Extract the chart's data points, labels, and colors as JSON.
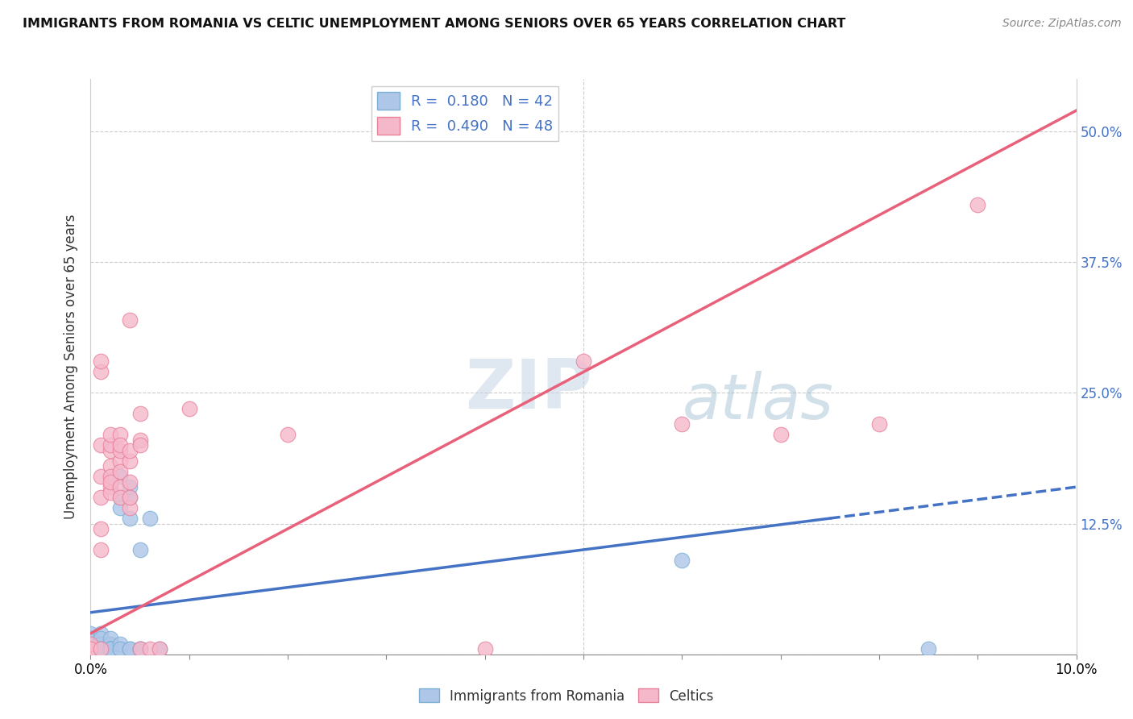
{
  "title": "IMMIGRANTS FROM ROMANIA VS CELTIC UNEMPLOYMENT AMONG SENIORS OVER 65 YEARS CORRELATION CHART",
  "source": "Source: ZipAtlas.com",
  "ylabel": "Unemployment Among Seniors over 65 years",
  "xlim": [
    0.0,
    0.1
  ],
  "ylim": [
    0.0,
    0.55
  ],
  "x_ticks": [
    0.0,
    0.01,
    0.02,
    0.03,
    0.04,
    0.05,
    0.06,
    0.07,
    0.08,
    0.09,
    0.1
  ],
  "x_tick_labels": [
    "0.0%",
    "",
    "",
    "",
    "",
    "",
    "",
    "",
    "",
    "",
    "10.0%"
  ],
  "y_ticks_right": [
    0.0,
    0.125,
    0.25,
    0.375,
    0.5
  ],
  "y_tick_labels_right": [
    "",
    "12.5%",
    "25.0%",
    "37.5%",
    "50.0%"
  ],
  "legend_R1": "0.180",
  "legend_N1": "42",
  "legend_R2": "0.490",
  "legend_N2": "48",
  "series1_color": "#aec6e8",
  "series1_edge": "#7bafd4",
  "series2_color": "#f5b8cb",
  "series2_edge": "#e8809a",
  "line1_color": "#4472c4",
  "line2_color": "#e8607a",
  "watermark_color": "#ccd9e8",
  "background_color": "#ffffff",
  "grid_color": "#cccccc",
  "romania_points": [
    [
      0.0,
      0.01
    ],
    [
      0.0,
      0.02
    ],
    [
      0.0,
      0.005
    ],
    [
      0.0,
      0.015
    ],
    [
      0.001,
      0.005
    ],
    [
      0.001,
      0.01
    ],
    [
      0.001,
      0.005
    ],
    [
      0.001,
      0.02
    ],
    [
      0.001,
      0.005
    ],
    [
      0.001,
      0.01
    ],
    [
      0.001,
      0.005
    ],
    [
      0.001,
      0.015
    ],
    [
      0.001,
      0.005
    ],
    [
      0.001,
      0.005
    ],
    [
      0.002,
      0.005
    ],
    [
      0.002,
      0.005
    ],
    [
      0.002,
      0.01
    ],
    [
      0.002,
      0.005
    ],
    [
      0.002,
      0.01
    ],
    [
      0.002,
      0.015
    ],
    [
      0.002,
      0.005
    ],
    [
      0.002,
      0.005
    ],
    [
      0.002,
      0.005
    ],
    [
      0.002,
      0.005
    ],
    [
      0.003,
      0.005
    ],
    [
      0.003,
      0.01
    ],
    [
      0.003,
      0.15
    ],
    [
      0.003,
      0.17
    ],
    [
      0.003,
      0.005
    ],
    [
      0.003,
      0.14
    ],
    [
      0.004,
      0.005
    ],
    [
      0.004,
      0.13
    ],
    [
      0.004,
      0.15
    ],
    [
      0.004,
      0.005
    ],
    [
      0.004,
      0.16
    ],
    [
      0.005,
      0.005
    ],
    [
      0.005,
      0.005
    ],
    [
      0.005,
      0.1
    ],
    [
      0.006,
      0.13
    ],
    [
      0.007,
      0.005
    ],
    [
      0.06,
      0.09
    ],
    [
      0.085,
      0.005
    ]
  ],
  "celtic_points": [
    [
      0.0,
      0.005
    ],
    [
      0.0,
      0.005
    ],
    [
      0.0,
      0.005
    ],
    [
      0.0,
      0.01
    ],
    [
      0.0,
      0.005
    ],
    [
      0.001,
      0.005
    ],
    [
      0.001,
      0.15
    ],
    [
      0.001,
      0.27
    ],
    [
      0.001,
      0.2
    ],
    [
      0.001,
      0.17
    ],
    [
      0.001,
      0.1
    ],
    [
      0.001,
      0.12
    ],
    [
      0.001,
      0.28
    ],
    [
      0.002,
      0.16
    ],
    [
      0.002,
      0.195
    ],
    [
      0.002,
      0.18
    ],
    [
      0.002,
      0.155
    ],
    [
      0.002,
      0.2
    ],
    [
      0.002,
      0.17
    ],
    [
      0.002,
      0.21
    ],
    [
      0.002,
      0.165
    ],
    [
      0.003,
      0.185
    ],
    [
      0.003,
      0.195
    ],
    [
      0.003,
      0.21
    ],
    [
      0.003,
      0.16
    ],
    [
      0.003,
      0.175
    ],
    [
      0.003,
      0.2
    ],
    [
      0.003,
      0.15
    ],
    [
      0.004,
      0.14
    ],
    [
      0.004,
      0.32
    ],
    [
      0.004,
      0.185
    ],
    [
      0.004,
      0.15
    ],
    [
      0.004,
      0.165
    ],
    [
      0.004,
      0.195
    ],
    [
      0.005,
      0.005
    ],
    [
      0.005,
      0.23
    ],
    [
      0.005,
      0.205
    ],
    [
      0.005,
      0.2
    ],
    [
      0.006,
      0.005
    ],
    [
      0.007,
      0.005
    ],
    [
      0.01,
      0.235
    ],
    [
      0.02,
      0.21
    ],
    [
      0.04,
      0.005
    ],
    [
      0.05,
      0.28
    ],
    [
      0.06,
      0.22
    ],
    [
      0.07,
      0.21
    ],
    [
      0.08,
      0.22
    ],
    [
      0.09,
      0.43
    ]
  ],
  "line1_slope": 1.2,
  "line1_intercept": 0.04,
  "line2_slope": 5.0,
  "line2_intercept": 0.02,
  "line1_solid_end": 0.075,
  "line1_dash_start": 0.075
}
